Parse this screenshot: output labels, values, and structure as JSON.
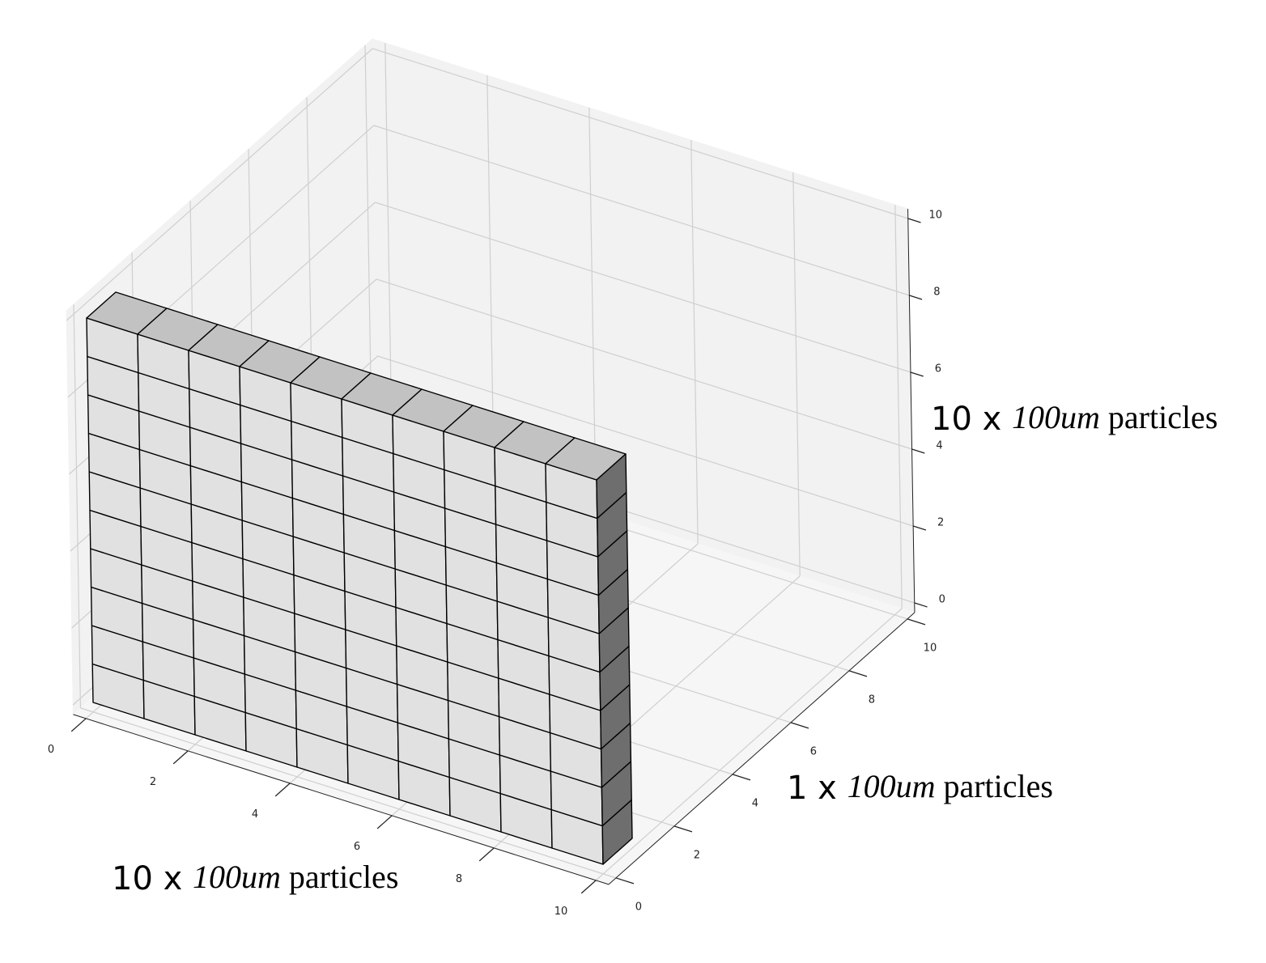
{
  "chart_data": {
    "type": "voxels",
    "voxels": {
      "x": [
        0,
        10
      ],
      "y": [
        0,
        1
      ],
      "z": [
        0,
        10
      ]
    },
    "voxel_size": 1,
    "face_colors": {
      "front": "#e1e1e1",
      "top": "#c2c2c2",
      "side": "#6e6e6e"
    },
    "edge_color": "#000000",
    "xlim": [
      0,
      10
    ],
    "ylim": [
      0,
      10
    ],
    "zlim": [
      0,
      10
    ],
    "xticks": [
      0,
      2,
      4,
      6,
      8,
      10
    ],
    "yticks": [
      0,
      2,
      4,
      6,
      8,
      10
    ],
    "zticks": [
      0,
      2,
      4,
      6,
      8,
      10
    ],
    "grid": true,
    "xlabel": [
      {
        "text": "10 x ",
        "font": "sans"
      },
      {
        "text": "100um",
        "font": "serif",
        "style": "italic"
      },
      {
        "text": " particles",
        "font": "serif"
      }
    ],
    "ylabel": [
      {
        "text": "1 x ",
        "font": "sans"
      },
      {
        "text": "100um",
        "font": "serif",
        "style": "italic"
      },
      {
        "text": " particles",
        "font": "serif"
      }
    ],
    "zlabel": [
      {
        "text": "10 x ",
        "font": "sans"
      },
      {
        "text": "100um",
        "font": "serif",
        "style": "italic"
      },
      {
        "text": " particles",
        "font": "serif"
      }
    ]
  }
}
